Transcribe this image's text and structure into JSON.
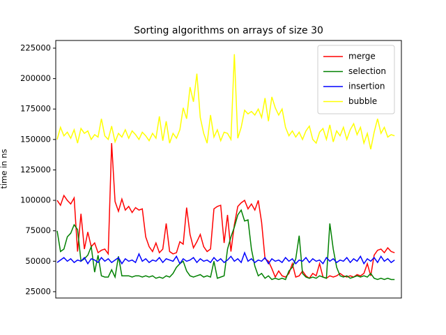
{
  "chart_data": {
    "type": "line",
    "title": "Sorting algorithms on arrays of size 30",
    "y_label": "time in ns",
    "x": [
      0,
      1,
      2,
      3,
      4,
      5,
      6,
      7,
      8,
      9,
      10,
      11,
      12,
      13,
      14,
      15,
      16,
      17,
      18,
      19,
      20,
      21,
      22,
      23,
      24,
      25,
      26,
      27,
      28,
      29,
      30,
      31,
      32,
      33,
      34,
      35,
      36,
      37,
      38,
      39,
      40,
      41,
      42,
      43,
      44,
      45,
      46,
      47,
      48,
      49,
      50,
      51,
      52,
      53,
      54,
      55,
      56,
      57,
      58,
      59,
      60,
      61,
      62,
      63,
      64,
      65,
      66,
      67,
      68,
      69,
      70,
      71,
      72,
      73,
      74,
      75,
      76,
      77,
      78,
      79,
      80,
      81,
      82,
      83,
      84,
      85,
      86,
      87,
      88,
      89,
      90,
      91,
      92,
      93,
      94,
      95,
      96,
      97,
      98,
      99
    ],
    "xlim": [
      -0.4,
      101
    ],
    "ylim": [
      19800,
      231300
    ],
    "yticks": [
      25000,
      50000,
      75000,
      100000,
      125000,
      150000,
      175000,
      200000,
      225000
    ],
    "legend": "upper right",
    "series": [
      {
        "name": "merge",
        "color": "#ff0000",
        "values": [
          100000,
          96000,
          104000,
          100000,
          97000,
          102000,
          58000,
          89000,
          60000,
          74000,
          62000,
          65000,
          57000,
          59000,
          60000,
          56000,
          147000,
          99000,
          91000,
          101000,
          92000,
          95000,
          90000,
          94000,
          92000,
          93000,
          70000,
          62000,
          58000,
          65000,
          57000,
          60000,
          81000,
          58000,
          56000,
          57000,
          66000,
          64000,
          94000,
          72000,
          61000,
          66000,
          72000,
          62000,
          58000,
          60000,
          93000,
          95000,
          96000,
          65000,
          88000,
          58000,
          80000,
          95000,
          98000,
          100000,
          93000,
          97000,
          92000,
          100000,
          82000,
          52000,
          50000,
          44000,
          37000,
          42000,
          38000,
          37000,
          40000,
          48000,
          37000,
          38000,
          42000,
          38000,
          36000,
          40000,
          38000,
          48000,
          37000,
          36000,
          38000,
          37000,
          38000,
          40000,
          38000,
          37000,
          38000,
          37000,
          39000,
          38000,
          40000,
          48000,
          38000,
          55000,
          59000,
          60000,
          57000,
          61000,
          58000,
          57000
        ]
      },
      {
        "name": "selection",
        "color": "#008000",
        "values": [
          75000,
          58000,
          60000,
          70000,
          73000,
          80000,
          76000,
          50000,
          52000,
          55000,
          62000,
          41000,
          55000,
          38000,
          37000,
          37000,
          43000,
          37000,
          54000,
          38000,
          38000,
          38000,
          37000,
          38000,
          38000,
          37000,
          38000,
          37000,
          38000,
          36000,
          37000,
          36000,
          38000,
          37000,
          40000,
          45000,
          48000,
          50000,
          42000,
          38000,
          37000,
          38000,
          39000,
          37000,
          38000,
          37000,
          50000,
          36000,
          37000,
          38000,
          60000,
          70000,
          78000,
          88000,
          92000,
          83000,
          84000,
          60000,
          46000,
          38000,
          40000,
          36000,
          38000,
          35000,
          36000,
          35000,
          36000,
          35000,
          42000,
          45000,
          52000,
          71000,
          40000,
          37000,
          36000,
          37000,
          36000,
          38000,
          37000,
          36000,
          81000,
          60000,
          45000,
          38000,
          37000,
          38000,
          36000,
          37000,
          38000,
          37000,
          38000,
          37000,
          40000,
          36000,
          35000,
          36000,
          35000,
          36000,
          35000,
          35000
        ]
      },
      {
        "name": "insertion",
        "color": "#0000ff",
        "values": [
          49000,
          51000,
          53000,
          50000,
          52000,
          49000,
          51000,
          50000,
          53000,
          48000,
          52000,
          51000,
          49000,
          53000,
          50000,
          52000,
          49000,
          51000,
          53000,
          48000,
          52000,
          50000,
          51000,
          49000,
          56000,
          50000,
          52000,
          49000,
          51000,
          50000,
          53000,
          49000,
          52000,
          51000,
          50000,
          54000,
          48000,
          52000,
          50000,
          51000,
          53000,
          49000,
          52000,
          50000,
          51000,
          49000,
          53000,
          50000,
          52000,
          49000,
          51000,
          54000,
          50000,
          52000,
          49000,
          57000,
          50000,
          52000,
          49000,
          51000,
          50000,
          53000,
          48000,
          52000,
          50000,
          51000,
          49000,
          53000,
          50000,
          52000,
          48000,
          51000,
          50000,
          53000,
          49000,
          52000,
          50000,
          51000,
          48000,
          53000,
          50000,
          52000,
          49000,
          51000,
          50000,
          53000,
          49000,
          52000,
          50000,
          54000,
          48000,
          52000,
          50000,
          53000,
          49000,
          54000,
          50000,
          52000,
          49000,
          51000
        ]
      },
      {
        "name": "bubble",
        "color": "#ffff00",
        "values": [
          150000,
          160000,
          153000,
          156000,
          151000,
          158000,
          147000,
          159000,
          155000,
          157000,
          150000,
          154000,
          152000,
          167000,
          153000,
          150000,
          161000,
          148000,
          155000,
          152000,
          158000,
          151000,
          157000,
          154000,
          150000,
          156000,
          153000,
          149000,
          155000,
          151000,
          169000,
          149000,
          165000,
          147000,
          155000,
          151000,
          158000,
          176000,
          167000,
          193000,
          181000,
          204000,
          168000,
          155000,
          147000,
          170000,
          152000,
          158000,
          149000,
          156000,
          155000,
          150000,
          220000,
          151000,
          160000,
          174000,
          171000,
          173000,
          170000,
          175000,
          168000,
          184000,
          165000,
          185000,
          176000,
          170000,
          175000,
          160000,
          153000,
          157000,
          152000,
          156000,
          150000,
          157000,
          161000,
          150000,
          147000,
          156000,
          159000,
          150000,
          162000,
          148000,
          157000,
          153000,
          160000,
          150000,
          158000,
          163000,
          154000,
          160000,
          147000,
          155000,
          142000,
          156000,
          167000,
          155000,
          160000,
          152000,
          154000,
          153000
        ]
      }
    ]
  }
}
